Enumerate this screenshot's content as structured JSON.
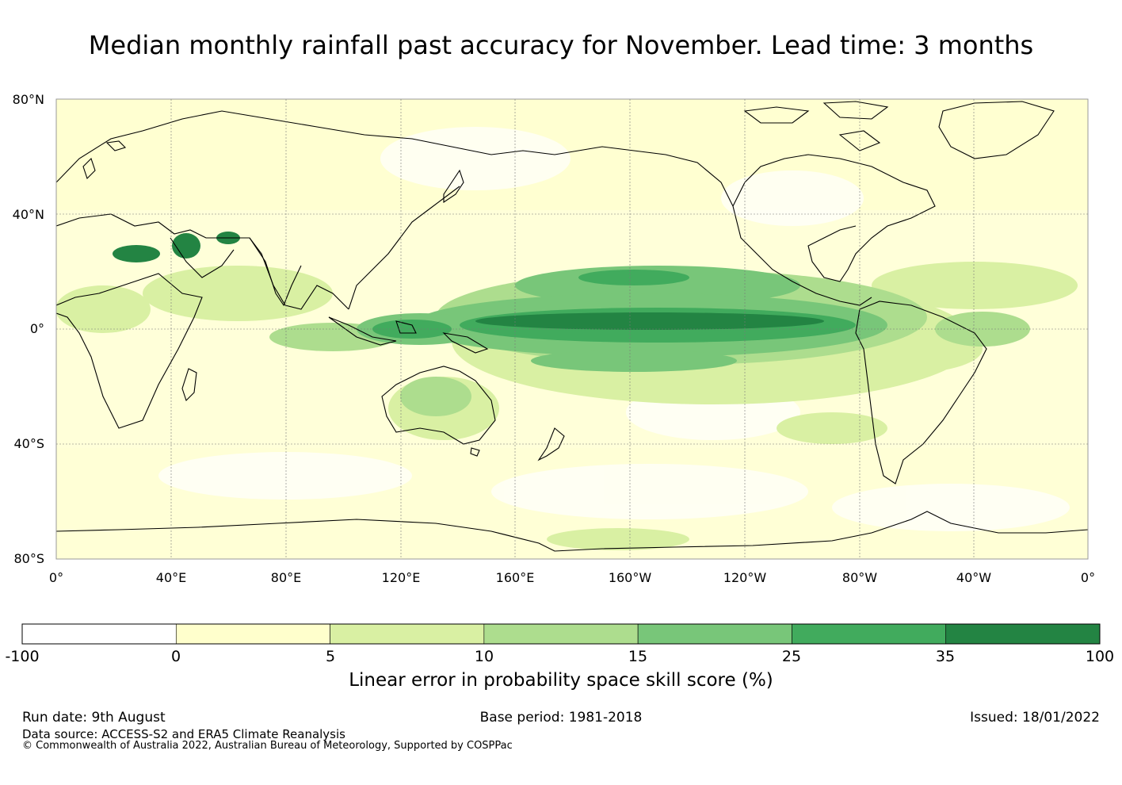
{
  "title": "Median monthly rainfall past accuracy for November. Lead time: 3 months",
  "lat_labels": [
    "80°N",
    "40°N",
    "0°",
    "40°S",
    "80°S"
  ],
  "lon_labels": [
    "0°",
    "40°E",
    "80°E",
    "120°E",
    "160°E",
    "160°W",
    "120°W",
    "80°W",
    "40°W",
    "0°"
  ],
  "colorbar": {
    "ticks": [
      "-100",
      "0",
      "5",
      "10",
      "15",
      "25",
      "35",
      "100"
    ],
    "colors": [
      "#ffffff",
      "#ffffcc",
      "#d9f0a3",
      "#addd8e",
      "#78c679",
      "#41ab5d",
      "#238443"
    ],
    "label": "Linear error in probability space skill score (%)"
  },
  "footer": {
    "run_date": "Run date: 9th August",
    "base_period": "Base period: 1981-2018",
    "issued": "Issued: 18/01/2022",
    "data_source": "Data source: ACCESS-S2 and ERA5 Climate Reanalysis",
    "copyright": "© Commonwealth of Australia 2022, Australian Bureau of Meteorology, Supported by COSPPac"
  }
}
